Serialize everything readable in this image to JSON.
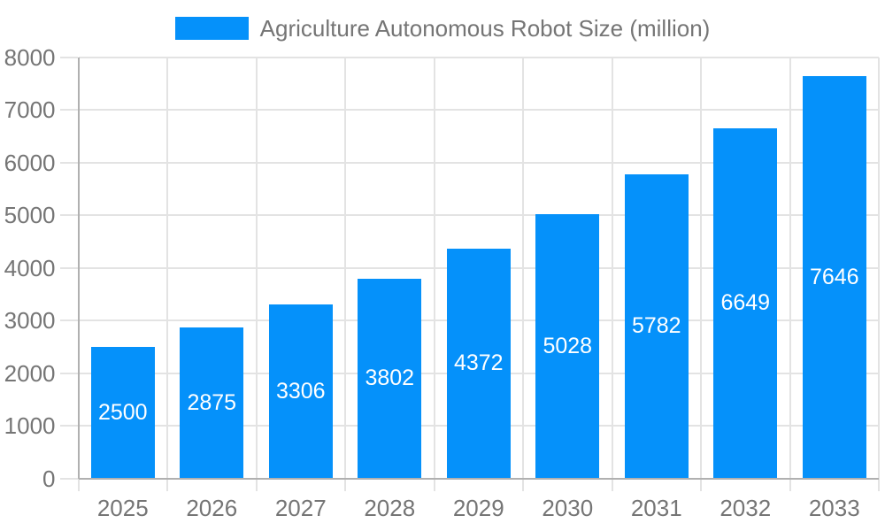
{
  "legend": {
    "label": "Agriculture Autonomous Robot Size (million)"
  },
  "colors": {
    "bar": "#0591fa",
    "axis_line": "#b0b0b0",
    "gridline": "#e3e3e3",
    "tick": "#e3e3e3",
    "axis_text": "#757575",
    "value_label": "#ffffff",
    "background": "#ffffff"
  },
  "chart_data": {
    "type": "bar",
    "title": "Agriculture Autonomous Robot Size (million)",
    "legend_entries": [
      "Agriculture Autonomous Robot Size (million)"
    ],
    "legend_position": "top-center",
    "categories": [
      "2025",
      "2026",
      "2027",
      "2028",
      "2029",
      "2030",
      "2031",
      "2032",
      "2033"
    ],
    "values": [
      2500,
      2875,
      3306,
      3802,
      4372,
      5028,
      5782,
      6649,
      7646
    ],
    "xlabel": "",
    "ylabel": "",
    "ylim": [
      0,
      8000
    ],
    "yticks": [
      0,
      1000,
      2000,
      3000,
      4000,
      5000,
      6000,
      7000,
      8000
    ],
    "grid": true,
    "value_labels": "white, centered inside bars"
  }
}
